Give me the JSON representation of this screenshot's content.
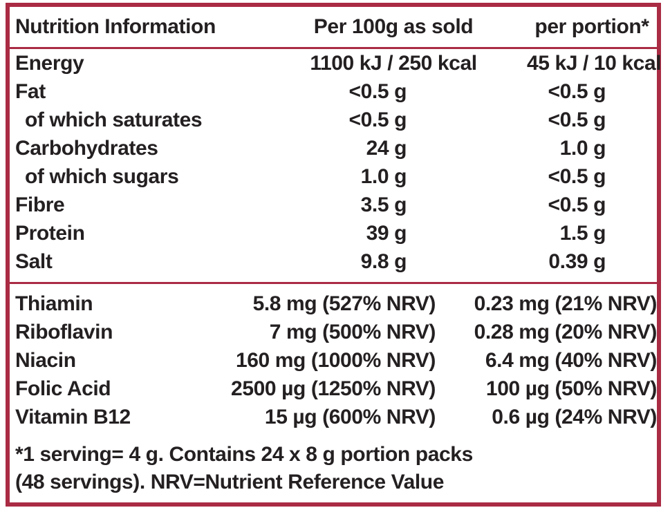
{
  "label": {
    "colors": {
      "border_red": "#aa2b44",
      "text": "#242021",
      "background": "#ffffff"
    },
    "header": {
      "col1": "Nutrition Information",
      "col2": "Per 100g as sold",
      "col3": "per portion*"
    },
    "rows": [
      {
        "label": "Energy",
        "per100": "1100 kJ / 250 kcal",
        "portion": "45 kJ / 10 kcal"
      },
      {
        "label": "Fat",
        "per100": "<0.5 g",
        "portion": "<0.5 g"
      },
      {
        "label": "of which saturates",
        "per100": "<0.5 g",
        "portion": "<0.5 g"
      },
      {
        "label": "Carbohydrates",
        "per100": "24 g",
        "portion": "1.0 g"
      },
      {
        "label": "of which sugars",
        "per100": "1.0 g",
        "portion": "<0.5 g"
      },
      {
        "label": "Fibre",
        "per100": "3.5 g",
        "portion": "<0.5 g"
      },
      {
        "label": "Protein",
        "per100": "39 g",
        "portion": "1.5 g"
      },
      {
        "label": "Salt",
        "per100": "9.8 g",
        "portion": "0.39 g"
      }
    ],
    "vitamins": [
      {
        "label": "Thiamin",
        "per100": "5.8 mg (527% NRV)",
        "portion": "0.23 mg (21% NRV)"
      },
      {
        "label": "Riboflavin",
        "per100": "7 mg (500% NRV)",
        "portion": "0.28 mg (20% NRV)"
      },
      {
        "label": "Niacin",
        "per100": "160 mg (1000% NRV)",
        "portion": "6.4 mg (40% NRV)"
      },
      {
        "label": "Folic Acid",
        "per100": "2500 µg (1250% NRV)",
        "portion": "100 µg (50% NRV)"
      },
      {
        "label": "Vitamin B12",
        "per100": "15 µg (600% NRV)",
        "portion": "0.6 µg (24% NRV)"
      }
    ],
    "footnote": {
      "line1": "*1 serving= 4 g. Contains 24 x 8 g portion packs",
      "line2": "(48 servings). NRV=Nutrient Reference Value"
    }
  }
}
